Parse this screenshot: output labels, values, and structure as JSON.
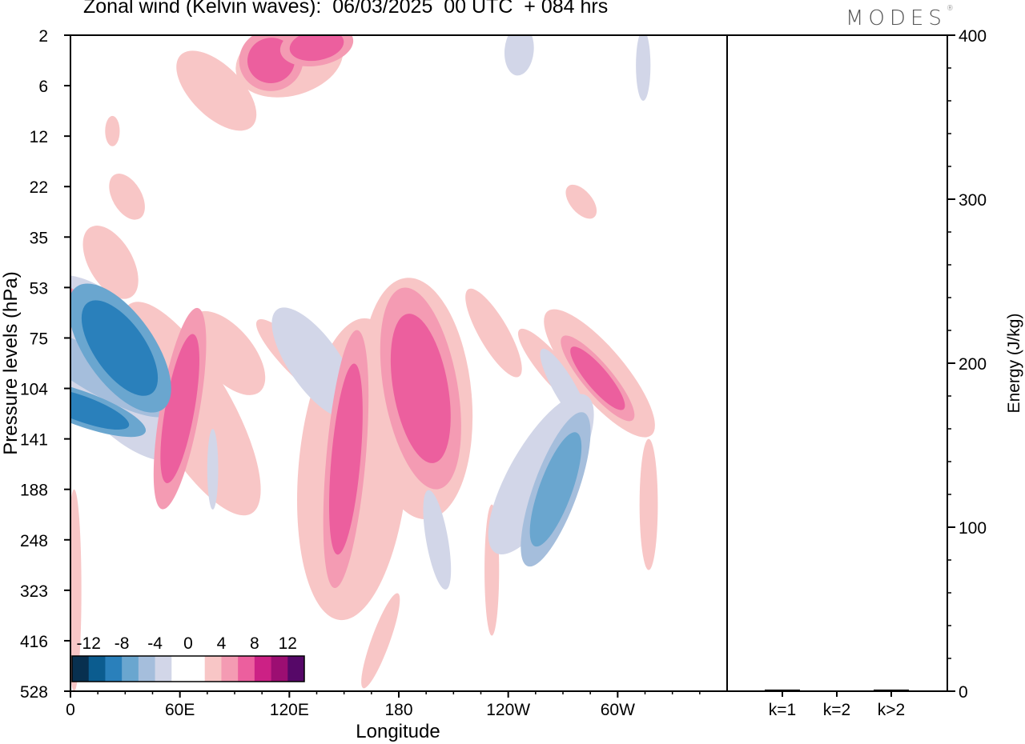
{
  "title": "Zonal wind (Kelvin waves):  06/03/2025  00 UTC  + 084 hrs",
  "logo": "MODES",
  "chart_data": [
    {
      "type": "heatmap",
      "title": "Zonal wind (Kelvin waves):  06/03/2025  00 UTC  + 084 hrs",
      "xlabel": "Longitude",
      "ylabel": "Pressure levels (hPa)",
      "x_ticks": [
        "0",
        "60E",
        "120E",
        "180",
        "120W",
        "60W"
      ],
      "y_ticks": [
        "2",
        "6",
        "12",
        "22",
        "35",
        "53",
        "75",
        "104",
        "141",
        "188",
        "248",
        "323",
        "416",
        "528"
      ],
      "colorbar": {
        "labels": [
          "-12",
          "-8",
          "-4",
          "0",
          "4",
          "8",
          "12"
        ],
        "colors": [
          "#08304f",
          "#0b5c8f",
          "#2a80bb",
          "#6aa6cf",
          "#a5bedc",
          "#d2d6e8",
          "#ffffff",
          "#ffffff",
          "#f8c6c6",
          "#f49bb3",
          "#ec5f9e",
          "#cc2185",
          "#9c0e72",
          "#560868"
        ]
      },
      "field_blobs": [
        {
          "lon": 6,
          "level": 7.4,
          "rx": 7,
          "ry": 1.0,
          "rot": -70,
          "value": -10
        },
        {
          "lon": 15,
          "level": 6.7,
          "rx": 11,
          "ry": 1.6,
          "rot": -60,
          "value": -6
        },
        {
          "lon": 27,
          "level": 6.2,
          "rx": 14,
          "ry": 1.1,
          "rot": -35,
          "value": -9
        },
        {
          "lon": 25,
          "level": 6.6,
          "rx": 28,
          "ry": 2.2,
          "rot": -38,
          "value": -3
        },
        {
          "lon": 10,
          "level": 5.9,
          "rx": 14,
          "ry": 1.2,
          "rot": -45,
          "value": 3
        },
        {
          "lon": 8,
          "level": 5.6,
          "rx": 6,
          "ry": 0.7,
          "rot": -45,
          "value": 6
        },
        {
          "lon": 22,
          "level": 4.5,
          "rx": 12,
          "ry": 0.8,
          "rot": -30,
          "value": 3
        },
        {
          "lon": 60,
          "level": 7.4,
          "rx": 8,
          "ry": 1.5,
          "rot": 10,
          "value": 6
        },
        {
          "lon": 66,
          "level": 7.4,
          "rx": 22,
          "ry": 2.4,
          "rot": -30,
          "value": 3
        },
        {
          "lon": 86,
          "level": 6.3,
          "rx": 14,
          "ry": 1.0,
          "rot": -40,
          "value": 3
        },
        {
          "lon": 78,
          "level": 8.6,
          "rx": 3,
          "ry": 0.8,
          "rot": 0,
          "value": -3
        },
        {
          "lon": 134,
          "level": 6.5,
          "rx": 14,
          "ry": 1.3,
          "rot": -35,
          "value": -4
        },
        {
          "lon": 140,
          "level": 6.0,
          "rx": 24,
          "ry": 2.2,
          "rot": -30,
          "value": -2
        },
        {
          "lon": 126,
          "level": 6.5,
          "rx": 8,
          "ry": 1.2,
          "rot": -45,
          "value": 3
        },
        {
          "lon": 155,
          "level": 8.6,
          "rx": 30,
          "ry": 3.0,
          "rot": 5,
          "value": 3
        },
        {
          "lon": 151,
          "level": 8.4,
          "rx": 8,
          "ry": 1.9,
          "rot": 5,
          "value": 6
        },
        {
          "lon": 190,
          "level": 7.2,
          "rx": 30,
          "ry": 2.4,
          "rot": -5,
          "value": 3
        },
        {
          "lon": 192,
          "level": 7.0,
          "rx": 15,
          "ry": 1.5,
          "rot": -10,
          "value": 6
        },
        {
          "lon": 200,
          "level": 9.8,
          "rx": 12,
          "ry": 1.5,
          "rot": -10,
          "value": -2
        },
        {
          "lon": 201,
          "level": 10.0,
          "rx": 6,
          "ry": 1.0,
          "rot": -10,
          "value": -4
        },
        {
          "lon": 255,
          "level": 8.5,
          "rx": 20,
          "ry": 2.2,
          "rot": 30,
          "value": -2
        },
        {
          "lon": 258,
          "level": 8.7,
          "rx": 17,
          "ry": 1.8,
          "rot": 30,
          "value": -4
        },
        {
          "lon": 266,
          "level": 9.0,
          "rx": 9,
          "ry": 1.2,
          "rot": 20,
          "value": -8
        },
        {
          "lon": 259,
          "level": 10.6,
          "rx": 12,
          "ry": 1.7,
          "rot": -20,
          "value": -2
        },
        {
          "lon": 271,
          "level": 7.0,
          "rx": 6,
          "ry": 0.9,
          "rot": -30,
          "value": -4
        },
        {
          "lon": 232,
          "level": 5.9,
          "rx": 8,
          "ry": 1.0,
          "rot": -30,
          "value": 3
        },
        {
          "lon": 264,
          "level": 6.6,
          "rx": 7,
          "ry": 1.0,
          "rot": -40,
          "value": 3
        },
        {
          "lon": 231,
          "level": 10.6,
          "rx": 4,
          "ry": 1.3,
          "rot": 0,
          "value": 3
        },
        {
          "lon": 290,
          "level": 6.7,
          "rx": 14,
          "ry": 1.6,
          "rot": -40,
          "value": 3
        },
        {
          "lon": 289,
          "level": 6.8,
          "rx": 6,
          "ry": 0.8,
          "rot": -40,
          "value": 6
        },
        {
          "lon": 298,
          "level": 7.9,
          "rx": 10,
          "ry": 1.2,
          "rot": 30,
          "value": -2
        },
        {
          "lon": 317,
          "level": 9.3,
          "rx": 5,
          "ry": 1.3,
          "rot": 0,
          "value": 3
        },
        {
          "lon": 80,
          "level": 1.1,
          "rx": 14,
          "ry": 1.0,
          "rot": -45,
          "value": 3
        },
        {
          "lon": 120,
          "level": 0.5,
          "rx": 30,
          "ry": 0.7,
          "rot": -15,
          "value": 3
        },
        {
          "lon": 110,
          "level": 0.5,
          "rx": 13,
          "ry": 0.45,
          "rot": -10,
          "value": 6
        },
        {
          "lon": 135,
          "level": 0.2,
          "rx": 15,
          "ry": 0.3,
          "rot": -10,
          "value": 6
        },
        {
          "lon": 243,
          "level": 0.4,
          "rx": 22,
          "ry": 0.7,
          "rot": 5,
          "value": -2
        },
        {
          "lon": 246,
          "level": 0.3,
          "rx": 8,
          "ry": 0.5,
          "rot": 5,
          "value": -4
        },
        {
          "lon": 175,
          "level": 3.6,
          "rx": 14,
          "ry": 0.8,
          "rot": -25,
          "value": -2
        },
        {
          "lon": 210,
          "level": 3.4,
          "rx": 12,
          "ry": 0.5,
          "rot": -20,
          "value": -2
        },
        {
          "lon": 31,
          "level": 3.2,
          "rx": 8,
          "ry": 0.5,
          "rot": -30,
          "value": 3
        },
        {
          "lon": 23,
          "level": 1.9,
          "rx": 4,
          "ry": 0.3,
          "rot": 0,
          "value": 3
        },
        {
          "lon": 280,
          "level": 3.3,
          "rx": 6,
          "ry": 0.4,
          "rot": -40,
          "value": 3
        },
        {
          "lon": 170,
          "level": 12.0,
          "rx": 5,
          "ry": 1.0,
          "rot": 20,
          "value": 3
        },
        {
          "lon": 2,
          "level": 11.0,
          "rx": 4,
          "ry": 2.0,
          "rot": 0,
          "value": 3
        },
        {
          "lon": 315,
          "level": 11.6,
          "rx": 4,
          "ry": 1.4,
          "rot": 0,
          "value": -2
        },
        {
          "lon": 36,
          "level": 0.6,
          "rx": 4,
          "ry": 0.7,
          "rot": 0,
          "value": -2
        },
        {
          "lon": 314,
          "level": 0.6,
          "rx": 4,
          "ry": 0.7,
          "rot": 0,
          "value": -3
        }
      ]
    },
    {
      "type": "bar",
      "categories": [
        "k=1",
        "k=2",
        "k>2"
      ],
      "values": [
        1,
        0,
        1
      ],
      "ylabel": "Energy (J/kg)",
      "ylim": [
        0,
        400
      ],
      "y_ticks": [
        0,
        100,
        200,
        300,
        400
      ]
    }
  ]
}
